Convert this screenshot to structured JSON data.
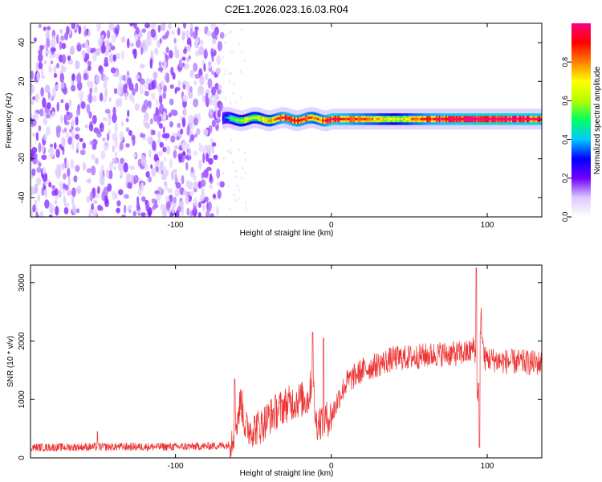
{
  "title": "C2E1.2026.023.16.03.R04",
  "chart_data": [
    {
      "type": "heatmap",
      "xlabel": "Height of straight line (km)",
      "ylabel": "Frequency (Hz)",
      "xlim": [
        -193,
        135
      ],
      "ylim": [
        -50,
        50
      ],
      "xticks": [
        -100,
        0,
        100
      ],
      "xtick_labels": [
        "-100",
        "0",
        "100"
      ],
      "yticks": [
        -40,
        -20,
        0,
        20,
        40
      ],
      "ytick_labels": [
        "-40",
        "-20",
        "0",
        "20",
        "40"
      ],
      "colorbar": {
        "label": "Normalized spectral amplitude",
        "range": [
          0,
          1
        ],
        "ticks": [
          0,
          0.2,
          0.4,
          0.6,
          0.8
        ],
        "tick_labels": [
          "0.0",
          "0.2",
          "0.4",
          "0.6",
          "0.8"
        ],
        "colormap": [
          "#ffffff",
          "#dcc8ff",
          "#7000ff",
          "#0000ff",
          "#00c8ff",
          "#00ff64",
          "#b4ff00",
          "#ffff00",
          "#ff8000",
          "#ff0000",
          "#ff0080"
        ]
      },
      "regions": [
        {
          "x_range": [
            -193,
            -70
          ],
          "y_range": [
            -50,
            50
          ],
          "amplitude": 0.15,
          "texture": "noise"
        },
        {
          "x_range": [
            -70,
            135
          ],
          "y_center": 0.5,
          "y_halfwidth": 3,
          "amplitude": 0.6,
          "texture": "band"
        }
      ],
      "band_peaks": [
        {
          "x": -70,
          "amp": 0.3
        },
        {
          "x": -60,
          "amp": 0.55
        },
        {
          "x": -50,
          "amp": 0.6
        },
        {
          "x": -40,
          "amp": 0.65
        },
        {
          "x": -30,
          "amp": 0.85
        },
        {
          "x": -20,
          "amp": 0.8
        },
        {
          "x": -10,
          "amp": 0.7
        },
        {
          "x": 0,
          "amp": 0.9
        },
        {
          "x": 20,
          "amp": 0.75
        },
        {
          "x": 40,
          "amp": 0.55
        },
        {
          "x": 60,
          "amp": 0.8
        },
        {
          "x": 80,
          "amp": 0.9
        },
        {
          "x": 100,
          "amp": 0.95
        },
        {
          "x": 120,
          "amp": 0.9
        },
        {
          "x": 135,
          "amp": 0.9
        }
      ]
    },
    {
      "type": "line",
      "xlabel": "Height of straight line (km)",
      "ylabel": "SNR (10 * v/v)",
      "xlim": [
        -193,
        135
      ],
      "ylim": [
        0,
        3300
      ],
      "xticks": [
        -100,
        0,
        100
      ],
      "xtick_labels": [
        "-100",
        "0",
        "100"
      ],
      "yticks": [
        0,
        1000,
        2000,
        3000
      ],
      "ytick_labels": [
        "0",
        "1000",
        "2000",
        "3000"
      ],
      "color": "#ee3333",
      "series": [
        {
          "x": [
            -193,
            -180,
            -160,
            -140,
            -120,
            -100,
            -80,
            -65,
            -60,
            -58,
            -55,
            -50,
            -45,
            -40,
            -35,
            -30,
            -25,
            -20,
            -15,
            -12,
            -10,
            -5,
            0,
            5,
            10,
            20,
            30,
            40,
            50,
            60,
            70,
            80,
            88,
            92,
            94,
            96,
            98,
            100,
            110,
            120,
            135
          ],
          "y": [
            180,
            180,
            185,
            190,
            190,
            190,
            200,
            220,
            700,
            1000,
            500,
            500,
            550,
            700,
            800,
            900,
            950,
            1000,
            1000,
            1400,
            600,
            650,
            700,
            1050,
            1300,
            1500,
            1600,
            1700,
            1720,
            1750,
            1780,
            1780,
            1800,
            1900,
            1000,
            2400,
            1700,
            1700,
            1650,
            1640,
            1620
          ],
          "spikes": [
            {
              "x": -150,
              "y": 450
            },
            {
              "x": -62,
              "y": 1350
            },
            {
              "x": -12,
              "y": 2150
            },
            {
              "x": -5,
              "y": 2050
            },
            {
              "x": 93,
              "y": 3250
            },
            {
              "x": 95,
              "y": 3250
            },
            {
              "x": 95,
              "y": 180
            }
          ]
        }
      ]
    }
  ]
}
